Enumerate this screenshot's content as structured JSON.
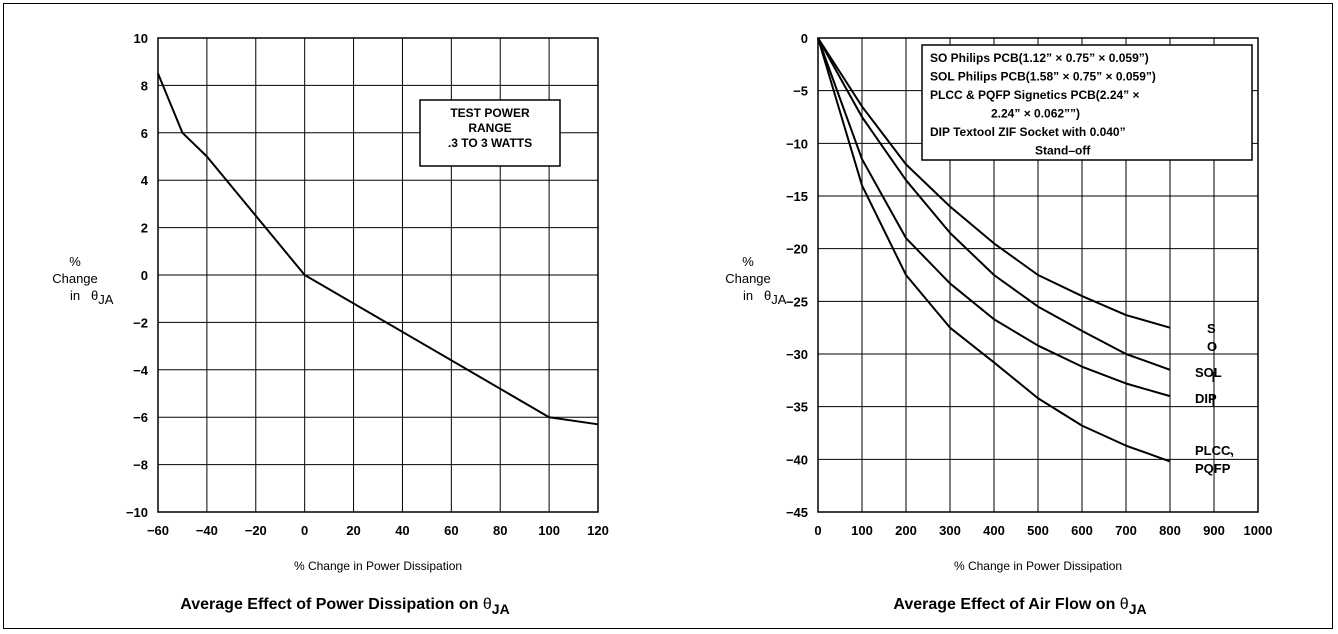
{
  "chart_data": [
    {
      "type": "line",
      "title": "Average Effect of Power Dissipation on",
      "title_symbol": "θ",
      "title_symbol_sub": "JA",
      "xlabel": "% Change in Power Dissipation",
      "ylabel_lines": [
        "%",
        "Change",
        "in"
      ],
      "ylabel_symbol": "θ",
      "ylabel_symbol_sub": "JA",
      "xlim": [
        -60,
        120
      ],
      "ylim": [
        -10,
        10
      ],
      "x_ticks": [
        -60,
        -40,
        -20,
        0,
        20,
        40,
        60,
        80,
        100,
        120
      ],
      "y_ticks": [
        10,
        8,
        6,
        4,
        2,
        0,
        -2,
        -4,
        -6,
        -8,
        -10
      ],
      "x_tick_labels": [
        "−60",
        "−40",
        "−20",
        "0",
        "20",
        "40",
        "60",
        "80",
        "100",
        "120"
      ],
      "y_tick_labels": [
        "10",
        "8",
        "6",
        "4",
        "2",
        "0",
        "−2",
        "−4",
        "−6",
        "−8",
        "−10"
      ],
      "grid": true,
      "annotation_lines": [
        "TEST POWER",
        "RANGE",
        ".3 TO 3 WATTS"
      ],
      "series": [
        {
          "x": [
            -60,
            -50,
            -40,
            0,
            100,
            120
          ],
          "y": [
            8.5,
            6.0,
            5.0,
            0,
            -6.0,
            -6.3
          ]
        }
      ]
    },
    {
      "type": "line",
      "title": "Average Effect of Air Flow on",
      "title_symbol": "θ",
      "title_symbol_sub": "JA",
      "xlabel": "% Change in Power Dissipation",
      "ylabel_lines": [
        "%",
        "Change",
        "in"
      ],
      "ylabel_symbol": "θ",
      "ylabel_symbol_sub": "JA",
      "xlim": [
        0,
        1000
      ],
      "ylim": [
        -45,
        0
      ],
      "x_ticks": [
        0,
        100,
        200,
        300,
        400,
        500,
        600,
        700,
        800,
        900,
        1000
      ],
      "y_ticks": [
        0,
        -5,
        -10,
        -15,
        -20,
        -25,
        -30,
        -35,
        -40,
        -45
      ],
      "x_tick_labels": [
        "0",
        "100",
        "200",
        "300",
        "400",
        "500",
        "600",
        "700",
        "800",
        "900",
        "1000"
      ],
      "y_tick_labels": [
        "0",
        "−5",
        "−10",
        "−15",
        "−20",
        "−25",
        "−30",
        "−35",
        "−40",
        "−45"
      ],
      "grid": true,
      "legend_lines": [
        "SO Philips PCB(1.12” × 0.75” × 0.059”)",
        "SOL Philips PCB(1.58” × 0.75” × 0.059”)",
        "PLCC & PQFP Signetics PCB(2.24” ×",
        "2.24” × 0.062””)",
        "DIP Textool ZIF Socket with 0.040”",
        "Stand–off"
      ],
      "legend_position": "top-right",
      "series": [
        {
          "name": "SO",
          "label_lines": [
            "S",
            "O"
          ],
          "x": [
            0,
            100,
            200,
            300,
            400,
            500,
            600,
            700,
            800
          ],
          "y": [
            0,
            -6.5,
            -12.0,
            -16.0,
            -19.5,
            -22.5,
            -24.5,
            -26.3,
            -27.5
          ]
        },
        {
          "name": "SOL",
          "label_lines": [
            "SOL"
          ],
          "x": [
            0,
            100,
            200,
            300,
            400,
            500,
            600,
            700,
            800
          ],
          "y": [
            0,
            -7.5,
            -13.5,
            -18.5,
            -22.5,
            -25.5,
            -27.8,
            -30.0,
            -31.5
          ]
        },
        {
          "name": "DIP",
          "label_lines": [
            "DIP"
          ],
          "x": [
            0,
            100,
            200,
            300,
            400,
            500,
            600,
            700,
            800
          ],
          "y": [
            0,
            -11.5,
            -19.0,
            -23.3,
            -26.7,
            -29.2,
            -31.2,
            -32.8,
            -34.0
          ]
        },
        {
          "name": "PLCC, PQFP",
          "label_lines": [
            "PLCC,",
            "PQFP"
          ],
          "x": [
            0,
            100,
            200,
            300,
            400,
            500,
            600,
            700,
            800
          ],
          "y": [
            0,
            -14.0,
            -22.5,
            -27.5,
            -30.8,
            -34.2,
            -36.8,
            -38.7,
            -40.2
          ]
        }
      ]
    }
  ]
}
